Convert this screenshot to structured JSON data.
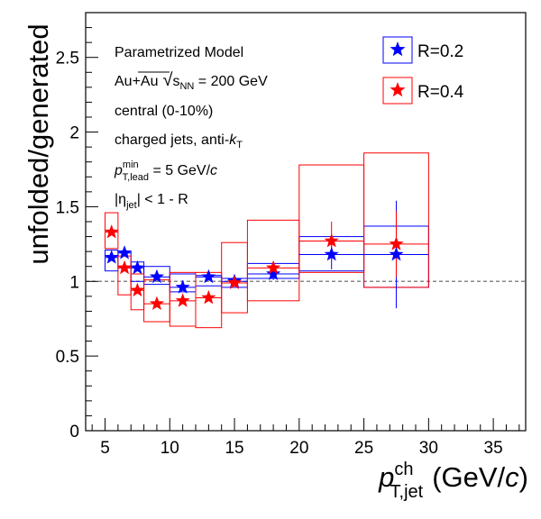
{
  "chart_data": {
    "type": "scatter",
    "xlabel": {
      "main": "p",
      "sup": "ch",
      "sub": "T,jet",
      "unit_pre": "(GeV/",
      "unit_it": "c",
      "unit_post": ")"
    },
    "ylabel": "unfolded/generated",
    "xlim": [
      3.5,
      37.5
    ],
    "ylim": [
      0,
      2.8
    ],
    "xticks": [
      5,
      10,
      15,
      20,
      25,
      30,
      35
    ],
    "yticks": [
      0,
      0.5,
      1,
      1.5,
      2,
      2.5
    ],
    "ytick_labels": [
      "0",
      "0.5",
      "1",
      "1.5",
      "2",
      "2.5"
    ],
    "reference_line": 1,
    "grid": false,
    "legend_position": "top-right",
    "annotations": {
      "line1": "Parametrized Model",
      "line2_a": "Au+Au",
      "line2_sqrt": "√",
      "line2_s": "s",
      "line2_sub": "NN",
      "line2_b": " = 200 GeV",
      "line3": "central (0-10%)",
      "line4_a": "charged jets, anti-",
      "line4_k": "k",
      "line4_sub": "T",
      "line5_p": "p",
      "line5_sup": "min",
      "line5_sub": "T,lead",
      "line5_b": " = 5 GeV/",
      "line5_c": "c",
      "line6_a": "|η",
      "line6_sub": "jet",
      "line6_b": "| < 1 - R"
    },
    "series": [
      {
        "name": "R=0.2",
        "color": "#0000ff",
        "points": [
          {
            "x": 5.5,
            "y": 1.16,
            "xlow": 5,
            "xhigh": 6,
            "err": 0.02,
            "syslow": 1.07,
            "syshigh": 1.21
          },
          {
            "x": 6.5,
            "y": 1.19,
            "xlow": 6,
            "xhigh": 7,
            "err": 0.02,
            "syslow": 1.09,
            "syshigh": 1.2
          },
          {
            "x": 7.5,
            "y": 1.09,
            "xlow": 7,
            "xhigh": 8,
            "err": 0.02,
            "syslow": 1.0,
            "syshigh": 1.13
          },
          {
            "x": 9,
            "y": 1.03,
            "xlow": 8,
            "xhigh": 10,
            "err": 0.02,
            "syslow": 0.98,
            "syshigh": 1.1
          },
          {
            "x": 11,
            "y": 0.96,
            "xlow": 10,
            "xhigh": 12,
            "err": 0.02,
            "syslow": 0.93,
            "syshigh": 1.05
          },
          {
            "x": 13,
            "y": 1.03,
            "xlow": 12,
            "xhigh": 14,
            "err": 0.02,
            "syslow": 0.97,
            "syshigh": 1.04
          },
          {
            "x": 15,
            "y": 1.0,
            "xlow": 14,
            "xhigh": 16,
            "err": 0.02,
            "syslow": 0.96,
            "syshigh": 1.02
          },
          {
            "x": 18,
            "y": 1.05,
            "xlow": 16,
            "xhigh": 20,
            "err": 0.04,
            "syslow": 1.02,
            "syshigh": 1.12
          },
          {
            "x": 22.5,
            "y": 1.18,
            "xlow": 20,
            "xhigh": 25,
            "err": 0.1,
            "syslow": 1.07,
            "syshigh": 1.3
          },
          {
            "x": 27.5,
            "y": 1.18,
            "xlow": 25,
            "xhigh": 30,
            "err": 0.36,
            "syslow": 0.96,
            "syshigh": 1.37
          }
        ]
      },
      {
        "name": "R=0.4",
        "color": "#ff0000",
        "points": [
          {
            "x": 5.5,
            "y": 1.33,
            "xlow": 5,
            "xhigh": 6,
            "err": 0.02,
            "syslow": 1.22,
            "syshigh": 1.46
          },
          {
            "x": 6.5,
            "y": 1.09,
            "xlow": 6,
            "xhigh": 7,
            "err": 0.02,
            "syslow": 0.91,
            "syshigh": 1.17
          },
          {
            "x": 7.5,
            "y": 0.94,
            "xlow": 7,
            "xhigh": 8,
            "err": 0.02,
            "syslow": 0.81,
            "syshigh": 1.05
          },
          {
            "x": 9,
            "y": 0.85,
            "xlow": 8,
            "xhigh": 10,
            "err": 0.02,
            "syslow": 0.73,
            "syshigh": 1.01
          },
          {
            "x": 11,
            "y": 0.87,
            "xlow": 10,
            "xhigh": 12,
            "err": 0.02,
            "syslow": 0.7,
            "syshigh": 1.06
          },
          {
            "x": 13,
            "y": 0.89,
            "xlow": 12,
            "xhigh": 14,
            "err": 0.02,
            "syslow": 0.69,
            "syshigh": 1.06
          },
          {
            "x": 15,
            "y": 0.99,
            "xlow": 14,
            "xhigh": 16,
            "err": 0.02,
            "syslow": 0.79,
            "syshigh": 1.26
          },
          {
            "x": 18,
            "y": 1.09,
            "xlow": 16,
            "xhigh": 20,
            "err": 0.04,
            "syslow": 0.87,
            "syshigh": 1.41
          },
          {
            "x": 22.5,
            "y": 1.27,
            "xlow": 20,
            "xhigh": 25,
            "err": 0.13,
            "syslow": 1.06,
            "syshigh": 1.78
          },
          {
            "x": 27.5,
            "y": 1.25,
            "xlow": 25,
            "xhigh": 30,
            "err": 0.22,
            "syslow": 0.96,
            "syshigh": 1.86
          }
        ]
      }
    ]
  }
}
